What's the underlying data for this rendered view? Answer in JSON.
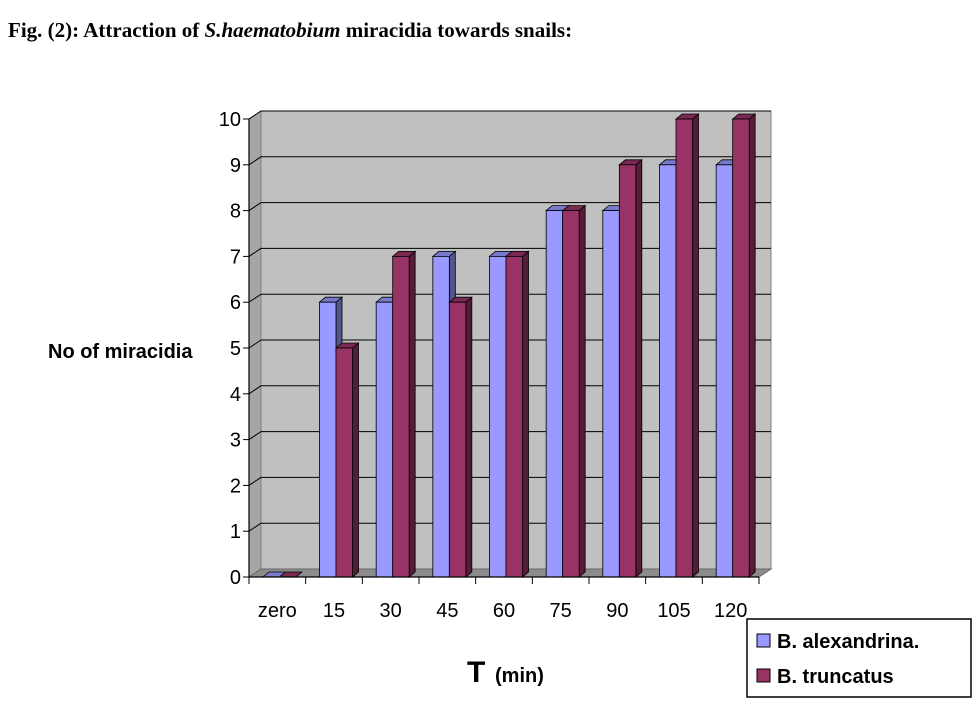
{
  "figure": {
    "title_prefix": "Fig. (2): Attraction of ",
    "title_italic": "S.haematobium",
    "title_suffix": " miracidia towards snails:"
  },
  "chart_data": {
    "type": "bar",
    "title": "",
    "ylabel": "No of miracidia",
    "xlabel_main": "T",
    "xlabel_unit": "(min)",
    "categories": [
      "zero",
      "15",
      "30",
      "45",
      "60",
      "75",
      "90",
      "105",
      "120"
    ],
    "ylim": [
      0,
      10
    ],
    "yticks": [
      "0",
      "1",
      "2",
      "3",
      "4",
      "5",
      "6",
      "7",
      "8",
      "9",
      "10"
    ],
    "grid": true,
    "legend_position": "bottom-right",
    "series": [
      {
        "name": "B. alexandrina.",
        "values": [
          0,
          6,
          6,
          7,
          7,
          8,
          8,
          9,
          9
        ],
        "color": "#9999ff"
      },
      {
        "name": "B. truncatus",
        "values": [
          0,
          5,
          7,
          6,
          7,
          8,
          9,
          10,
          10
        ],
        "color": "#993366"
      }
    ],
    "plot_background": "#c0c0c0"
  }
}
